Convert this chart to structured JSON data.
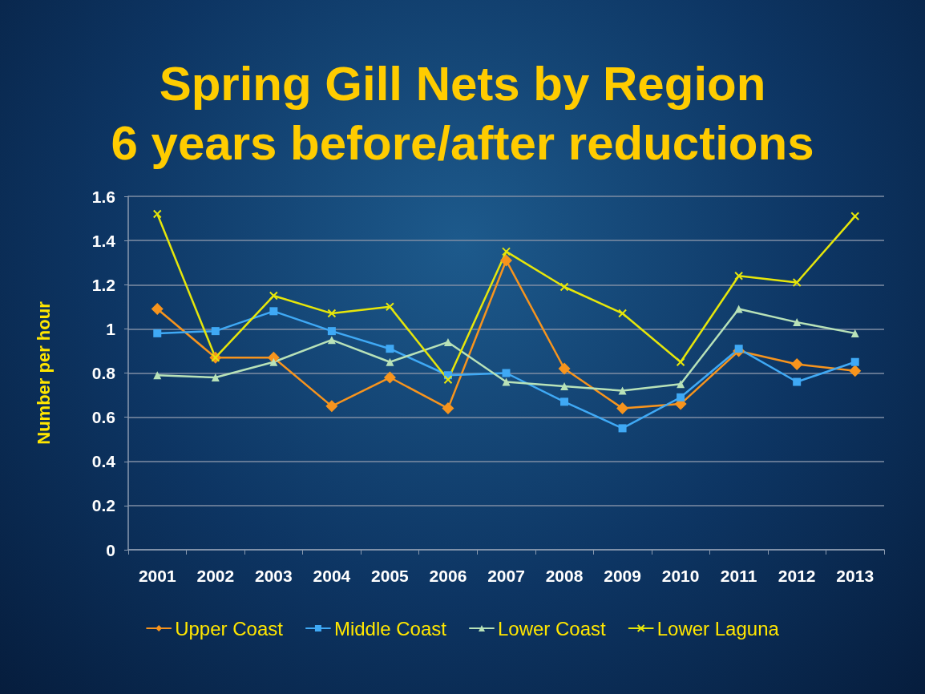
{
  "chart_data": {
    "type": "line",
    "title": "Spring Gill Nets by Region\n6 years before/after reductions",
    "ylabel": "Number per hour",
    "categories": [
      "2001",
      "2002",
      "2003",
      "2004",
      "2005",
      "2006",
      "2007",
      "2008",
      "2009",
      "2010",
      "2011",
      "2012",
      "2013"
    ],
    "series": [
      {
        "name": "Upper Coast",
        "color": "#f7941d",
        "marker": "diamond",
        "values": [
          1.09,
          0.87,
          0.87,
          0.65,
          0.78,
          0.64,
          1.31,
          0.82,
          0.64,
          0.66,
          0.9,
          0.84,
          0.81
        ]
      },
      {
        "name": "Middle Coast",
        "color": "#3fa9f5",
        "marker": "square",
        "values": [
          0.98,
          0.99,
          1.08,
          0.99,
          0.91,
          0.79,
          0.8,
          0.67,
          0.55,
          0.69,
          0.91,
          0.76,
          0.85
        ]
      },
      {
        "name": "Lower Coast",
        "color": "#b8e2b8",
        "marker": "triangle",
        "values": [
          0.79,
          0.78,
          0.85,
          0.95,
          0.85,
          0.94,
          0.76,
          0.74,
          0.72,
          0.75,
          1.09,
          1.03,
          0.98
        ]
      },
      {
        "name": "Lower Laguna",
        "color": "#e6e60a",
        "marker": "cross",
        "values": [
          1.52,
          0.87,
          1.15,
          1.07,
          1.1,
          0.77,
          1.35,
          1.19,
          1.07,
          0.85,
          1.24,
          1.21,
          1.51
        ]
      }
    ],
    "ylim": [
      0,
      1.6
    ],
    "yticks": [
      0,
      0.2,
      0.4,
      0.6,
      0.8,
      1,
      1.2,
      1.4,
      1.6
    ],
    "grid": "y",
    "legend": "bottom"
  }
}
